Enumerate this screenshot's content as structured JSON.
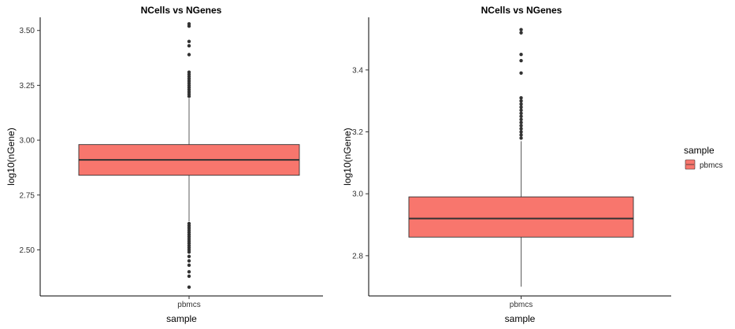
{
  "colors": {
    "box_fill": "#F8766D",
    "box_stroke": "#333333",
    "outlier": "#333333"
  },
  "legend": {
    "title": "sample",
    "items": [
      {
        "label": "pbmcs",
        "color": "#F8766D"
      }
    ]
  },
  "chart_data": [
    {
      "type": "boxplot",
      "title": "NCells vs NGenes",
      "xlabel": "sample",
      "ylabel": "log10(nGene)",
      "categories": [
        "pbmcs"
      ],
      "ylim": [
        2.29,
        3.56
      ],
      "yticks": [
        2.5,
        2.75,
        3.0,
        3.25,
        3.5
      ],
      "ytick_labels": [
        "2.50",
        "2.75",
        "3.00",
        "3.25",
        "3.50"
      ],
      "boxes": [
        {
          "category": "pbmcs",
          "min": 2.63,
          "q1": 2.84,
          "median": 2.91,
          "q3": 2.98,
          "max": 3.19
        }
      ],
      "outliers": [
        3.53,
        3.52,
        3.45,
        3.43,
        3.39,
        3.31,
        3.3,
        3.29,
        3.28,
        3.27,
        3.26,
        3.25,
        3.24,
        3.23,
        3.22,
        3.21,
        3.2,
        2.62,
        2.61,
        2.6,
        2.59,
        2.58,
        2.57,
        2.56,
        2.55,
        2.54,
        2.53,
        2.52,
        2.51,
        2.5,
        2.49,
        2.47,
        2.45,
        2.43,
        2.4,
        2.38,
        2.33
      ],
      "grid": false
    },
    {
      "type": "boxplot",
      "title": "NCells vs NGenes",
      "xlabel": "sample",
      "ylabel": "log10(nGene)",
      "categories": [
        "pbmcs"
      ],
      "ylim": [
        2.67,
        3.57
      ],
      "yticks": [
        2.8,
        3.0,
        3.2,
        3.4
      ],
      "ytick_labels": [
        "2.8",
        "3.0",
        "3.2",
        "3.4"
      ],
      "boxes": [
        {
          "category": "pbmcs",
          "min": 2.7,
          "q1": 2.86,
          "median": 2.92,
          "q3": 2.99,
          "max": 3.17
        }
      ],
      "outliers": [
        3.53,
        3.52,
        3.45,
        3.43,
        3.39,
        3.31,
        3.3,
        3.29,
        3.28,
        3.27,
        3.26,
        3.25,
        3.24,
        3.23,
        3.22,
        3.21,
        3.2,
        3.19,
        3.18
      ],
      "grid": false
    }
  ]
}
